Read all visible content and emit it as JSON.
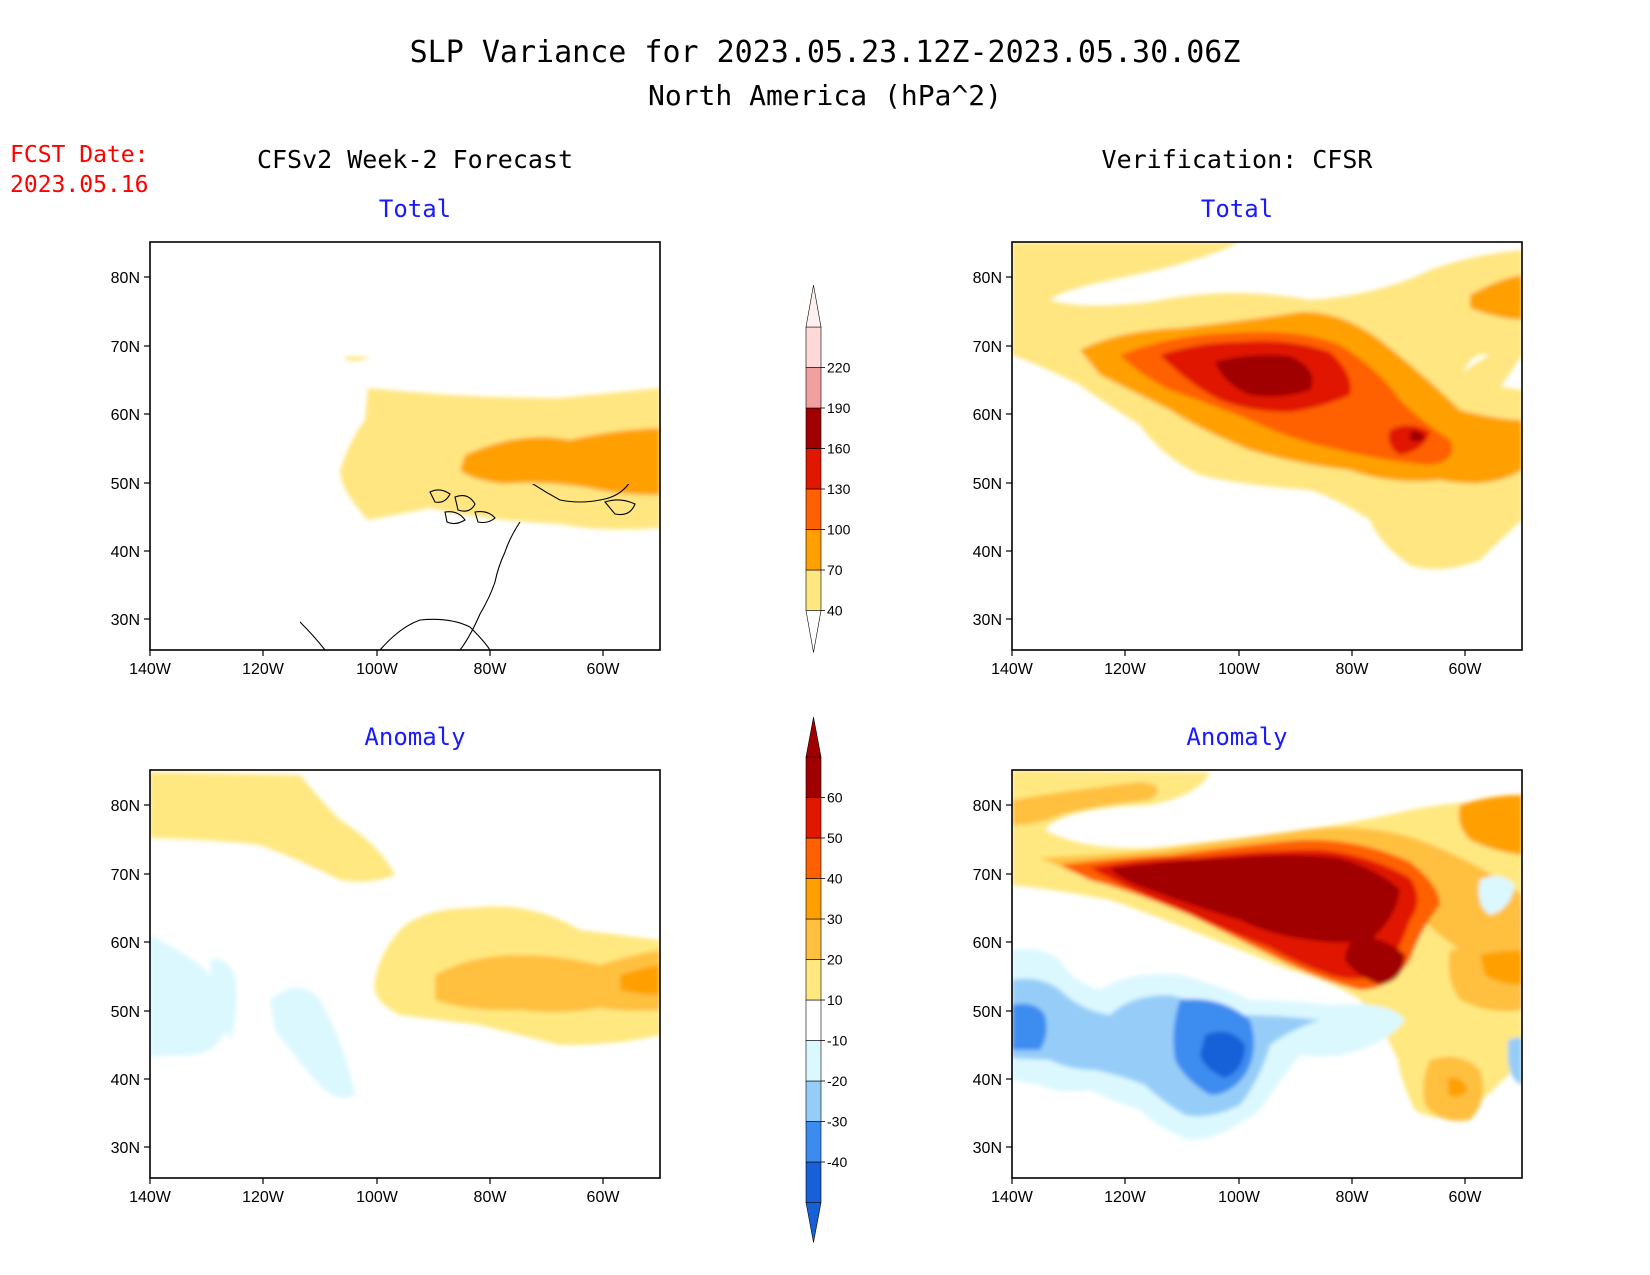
{
  "title": {
    "line1": "SLP Variance for 2023.05.23.12Z-2023.05.30.06Z",
    "line2": "North America (hPa^2)"
  },
  "fcst": {
    "label": "FCST Date:",
    "date": "2023.05.16"
  },
  "columns": {
    "left": "CFSv2 Week-2 Forecast",
    "right": "Verification: CFSR"
  },
  "panel_titles": {
    "total": "Total",
    "anomaly": "Anomaly"
  },
  "axes": {
    "lat_labels": [
      "80N",
      "70N",
      "60N",
      "50N",
      "40N",
      "30N"
    ],
    "lon_labels": [
      "140W",
      "120W",
      "100W",
      "80W",
      "60W"
    ]
  },
  "colors": {
    "title": "#000000",
    "fcst": "#ff0000",
    "panel_title": "#1a1aff",
    "coast": "#000000"
  },
  "legends": {
    "total": {
      "labels": [
        "40",
        "70",
        "100",
        "130",
        "160",
        "190",
        "220"
      ],
      "colors": [
        "#ffe680",
        "#ffa000",
        "#ff6000",
        "#e01800",
        "#a00000",
        "#f0a0a0",
        "#ffd8d8"
      ]
    },
    "anomaly": {
      "labels": [
        "-40",
        "-30",
        "-20",
        "-10",
        "10",
        "20",
        "30",
        "40",
        "50",
        "60"
      ],
      "colors": [
        "#1860d8",
        "#3c8cf0",
        "#96cdf8",
        "#dcf8ff",
        "#ffffff",
        "#ffe880",
        "#ffc040",
        "#ffa000",
        "#ff6000",
        "#e01800",
        "#a00000"
      ]
    }
  }
}
